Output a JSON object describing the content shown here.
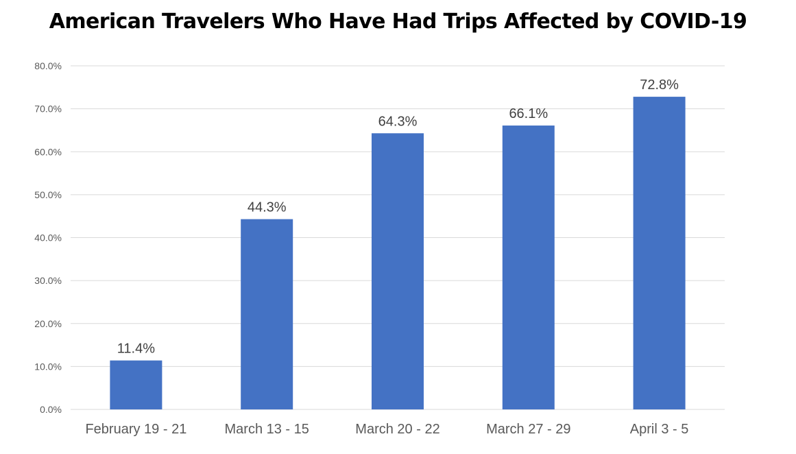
{
  "chart_data": {
    "type": "bar",
    "title": "American Travelers Who Have Had Trips Affected by COVID-19",
    "xlabel": "",
    "ylabel": "",
    "categories": [
      "February 19 - 21",
      "March 13 - 15",
      "March 20 - 22",
      "March 27 - 29",
      "April 3 - 5"
    ],
    "values": [
      11.4,
      44.3,
      64.3,
      66.1,
      72.8
    ],
    "data_labels": [
      "11.4%",
      "44.3%",
      "64.3%",
      "66.1%",
      "72.8%"
    ],
    "y_ticks": [
      "0.0%",
      "10.0%",
      "20.0%",
      "30.0%",
      "40.0%",
      "50.0%",
      "60.0%",
      "70.0%",
      "80.0%"
    ],
    "ylim": [
      0,
      80
    ],
    "grid": true,
    "legend": "none",
    "bar_color": "#4472c4"
  }
}
